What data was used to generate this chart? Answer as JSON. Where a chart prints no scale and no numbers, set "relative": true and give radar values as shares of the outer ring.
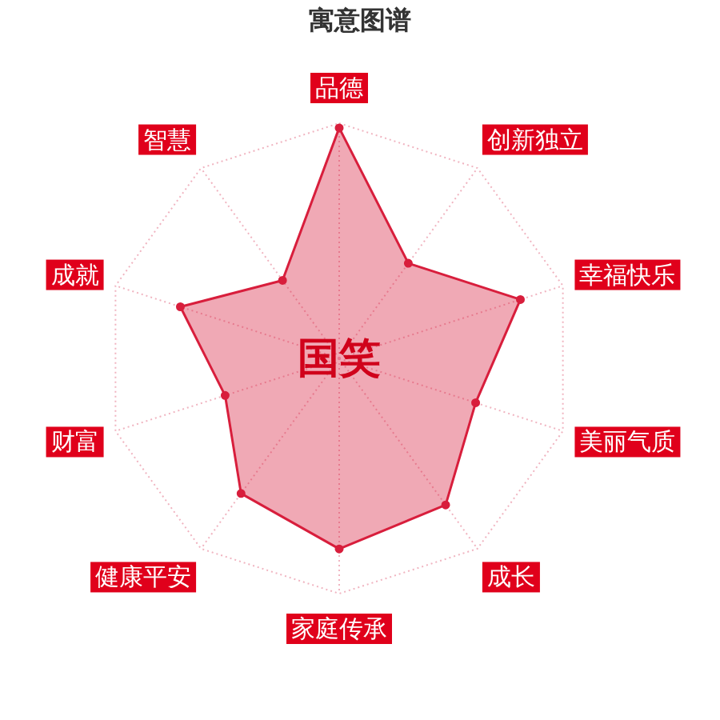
{
  "chart_data": {
    "type": "radar",
    "title": "寓意图谱",
    "categories": [
      "品德",
      "创新独立",
      "幸福快乐",
      "美丽气质",
      "成长",
      "家庭传承",
      "健康平安",
      "财富",
      "成就",
      "智慧"
    ],
    "series": [
      {
        "color": "#d81e3c",
        "values": [
          0.98,
          0.5,
          0.81,
          0.61,
          0.77,
          0.81,
          0.71,
          0.51,
          0.71,
          0.41
        ]
      }
    ],
    "relative": true,
    "grid": true,
    "marker": "circle",
    "annotations": [
      "国笑"
    ]
  }
}
